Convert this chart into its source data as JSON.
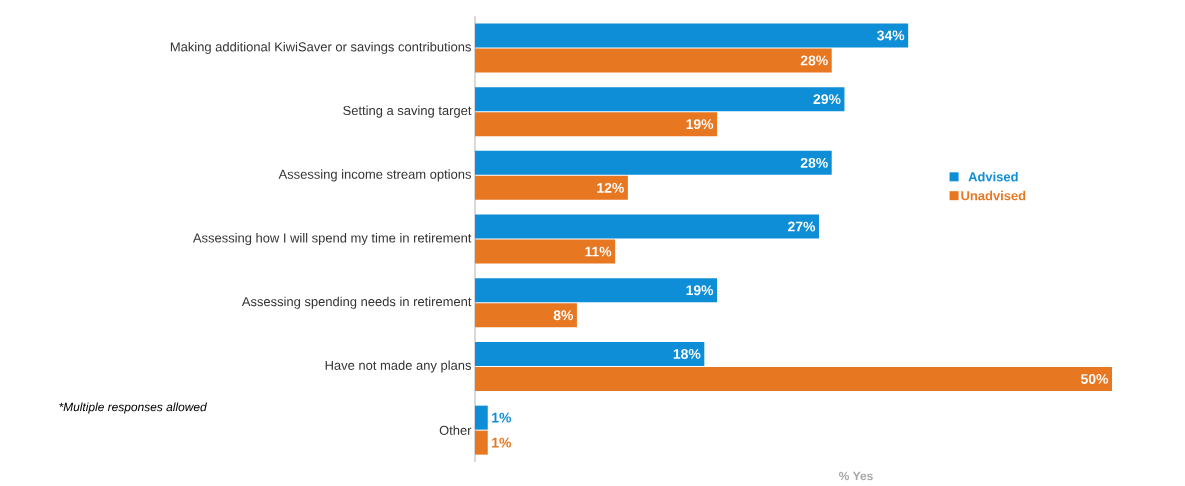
{
  "chart_data": {
    "type": "bar",
    "orientation": "horizontal",
    "xlabel": "% Yes",
    "legend": "right",
    "annotations": [
      "*Multiple responses allowed"
    ],
    "categories": [
      "Making additional KiwiSaver or savings contributions",
      "Setting a saving target",
      "Assessing income stream options",
      "Assessing how I will spend my time in retirement",
      "Assessing spending needs in retirement",
      "Have not made any plans",
      "Other"
    ],
    "series": [
      {
        "name": "Advised",
        "color": "#0f8ed8",
        "values": [
          34,
          29,
          28,
          27,
          19,
          18,
          1
        ],
        "value_labels": [
          "34%",
          "29%",
          "28%",
          "27%",
          "19%",
          "18%",
          "1%"
        ]
      },
      {
        "name": "Unadvised",
        "color": "#e87722",
        "values": [
          28,
          19,
          12,
          11,
          8,
          50,
          1
        ],
        "value_labels": [
          "28%",
          "19%",
          "12%",
          "11%",
          "8%",
          "50%",
          "1%"
        ]
      }
    ]
  }
}
